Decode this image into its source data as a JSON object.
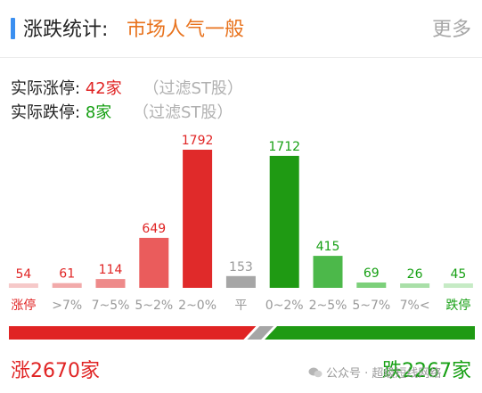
{
  "header": {
    "title": "涨跌统计:",
    "mood": "市场人气一般",
    "more_label": "更多"
  },
  "limit_stats": {
    "up_label": "实际涨停:",
    "up_value": "42家",
    "down_label": "实际跌停:",
    "down_value": "8家",
    "filter_note": "（过滤ST股）"
  },
  "chart_data": {
    "type": "bar",
    "categories": [
      "涨停",
      ">7%",
      "7~5%",
      "5~2%",
      "2~0%",
      "平",
      "0~2%",
      "2~5%",
      "5~7%",
      "7%<",
      "跌停"
    ],
    "values": [
      54,
      61,
      114,
      649,
      1792,
      153,
      1712,
      415,
      69,
      26,
      45
    ],
    "colors": [
      "#f6c9c9",
      "#f2aaaa",
      "#ee8a8a",
      "#ea5c5c",
      "#e02a2a",
      "#a6a6a6",
      "#1f9a13",
      "#4cb84a",
      "#7cd07a",
      "#a9dfa8",
      "#c6ebc5"
    ],
    "label_colors": [
      "#e02424",
      "#e02424",
      "#e02424",
      "#e02424",
      "#e02424",
      "#999999",
      "#17a014",
      "#17a014",
      "#17a014",
      "#17a014",
      "#17a014"
    ],
    "tick_colors": [
      "#e02424",
      "#999999",
      "#999999",
      "#999999",
      "#999999",
      "#999999",
      "#999999",
      "#999999",
      "#999999",
      "#999999",
      "#17a014"
    ],
    "ylim": [
      0,
      1792
    ],
    "grid": false
  },
  "totals": {
    "rise_label": "涨2670家",
    "fall_label": "跌2267家",
    "rise_count": 2670,
    "flat_count": 153,
    "fall_count": 2267,
    "rise_color": "#e02424",
    "flat_color": "#a6a6a6",
    "fall_color": "#1f9a13"
  },
  "watermark": {
    "text": "公众号 · 超级短线网络"
  }
}
